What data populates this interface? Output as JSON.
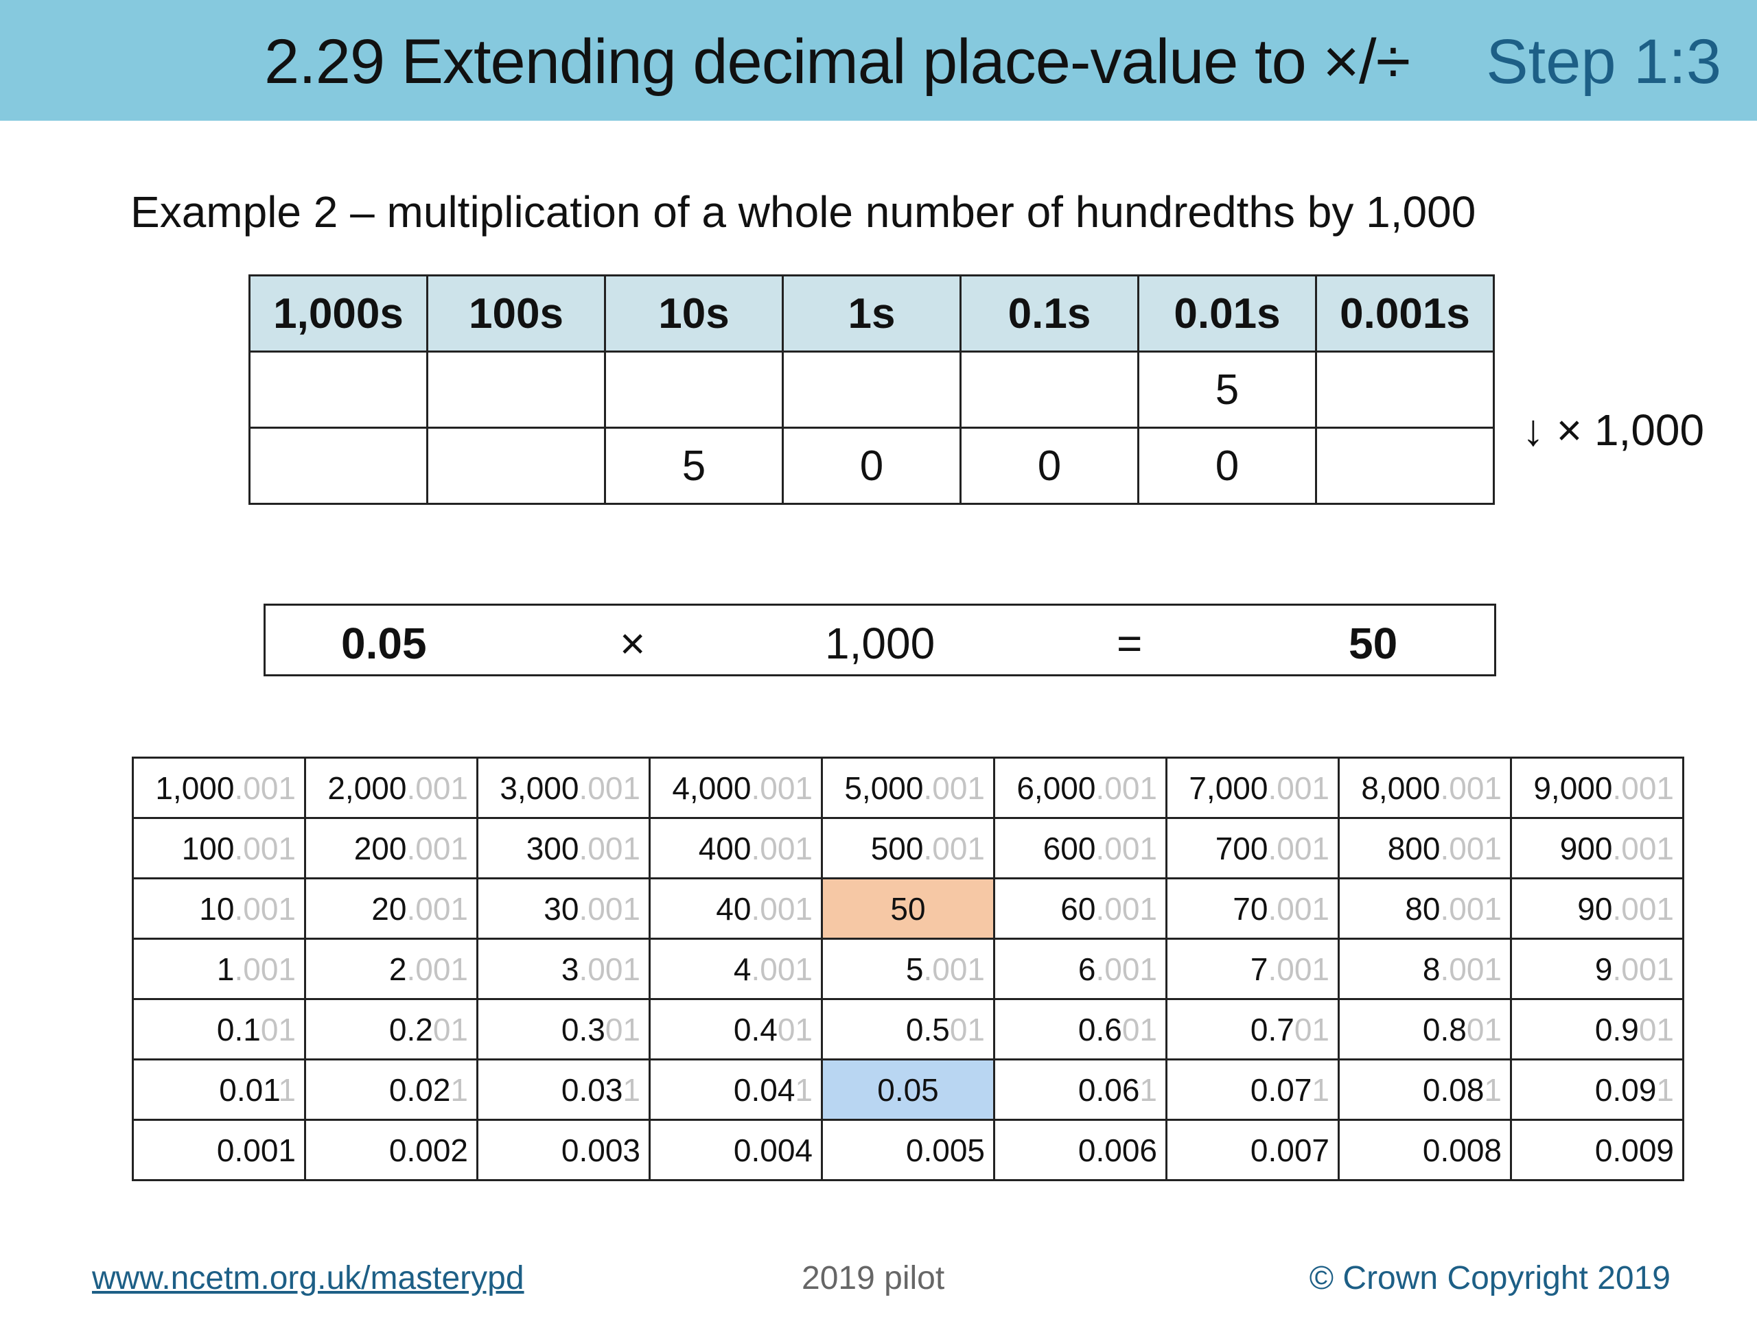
{
  "header": {
    "title": "2.29 Extending decimal place-value to ×/÷",
    "step": "Step 1:3"
  },
  "subtitle": "Example 2 – multiplication of a whole number of hundredths by 1,000",
  "place_value_table": {
    "headers": [
      "1,000s",
      "100s",
      "10s",
      "1s",
      "0.1s",
      "0.01s",
      "0.001s"
    ],
    "rows": [
      [
        "",
        "",
        "",
        "",
        "",
        "5",
        ""
      ],
      [
        "",
        "",
        "5",
        "0",
        "0",
        "0",
        ""
      ]
    ],
    "note": "↓ × 1,000"
  },
  "equation": {
    "left": "0.05",
    "op": "×",
    "right": "1,000",
    "eq": "=",
    "result": "50"
  },
  "gattegno": {
    "rows": [
      [
        [
          "1,000",
          ".001"
        ],
        [
          "2,000",
          ".001"
        ],
        [
          "3,000",
          ".001"
        ],
        [
          "4,000",
          ".001"
        ],
        [
          "5,000",
          ".001"
        ],
        [
          "6,000",
          ".001"
        ],
        [
          "7,000",
          ".001"
        ],
        [
          "8,000",
          ".001"
        ],
        [
          "9,000",
          ".001"
        ]
      ],
      [
        [
          "100",
          ".001"
        ],
        [
          "200",
          ".001"
        ],
        [
          "300",
          ".001"
        ],
        [
          "400",
          ".001"
        ],
        [
          "500",
          ".001"
        ],
        [
          "600",
          ".001"
        ],
        [
          "700",
          ".001"
        ],
        [
          "800",
          ".001"
        ],
        [
          "900",
          ".001"
        ]
      ],
      [
        [
          "10",
          ".001"
        ],
        [
          "20",
          ".001"
        ],
        [
          "30",
          ".001"
        ],
        [
          "40",
          ".001"
        ],
        [
          "50",
          ""
        ],
        [
          "60",
          ".001"
        ],
        [
          "70",
          ".001"
        ],
        [
          "80",
          ".001"
        ],
        [
          "90",
          ".001"
        ]
      ],
      [
        [
          "1",
          ".001"
        ],
        [
          "2",
          ".001"
        ],
        [
          "3",
          ".001"
        ],
        [
          "4",
          ".001"
        ],
        [
          "5",
          ".001"
        ],
        [
          "6",
          ".001"
        ],
        [
          "7",
          ".001"
        ],
        [
          "8",
          ".001"
        ],
        [
          "9",
          ".001"
        ]
      ],
      [
        [
          "0.1",
          "01"
        ],
        [
          "0.2",
          "01"
        ],
        [
          "0.3",
          "01"
        ],
        [
          "0.4",
          "01"
        ],
        [
          "0.5",
          "01"
        ],
        [
          "0.6",
          "01"
        ],
        [
          "0.7",
          "01"
        ],
        [
          "0.8",
          "01"
        ],
        [
          "0.9",
          "01"
        ]
      ],
      [
        [
          "0.01",
          "1"
        ],
        [
          "0.02",
          "1"
        ],
        [
          "0.03",
          "1"
        ],
        [
          "0.04",
          "1"
        ],
        [
          "0.05",
          ""
        ],
        [
          "0.06",
          "1"
        ],
        [
          "0.07",
          "1"
        ],
        [
          "0.08",
          "1"
        ],
        [
          "0.09",
          "1"
        ]
      ],
      [
        [
          "0.001",
          ""
        ],
        [
          "0.002",
          ""
        ],
        [
          "0.003",
          ""
        ],
        [
          "0.004",
          ""
        ],
        [
          "0.005",
          ""
        ],
        [
          "0.006",
          ""
        ],
        [
          "0.007",
          ""
        ],
        [
          "0.008",
          ""
        ],
        [
          "0.009",
          ""
        ]
      ]
    ],
    "highlight_orange": "50",
    "highlight_blue": "0.05",
    "colors": {
      "orange": "#f6c8a5",
      "blue": "#b9d6f2",
      "ghost_digits": "#c4c4c4"
    }
  },
  "footer": {
    "link": "www.ncetm.org.uk/masterypd",
    "mid": "2019 pilot",
    "right": "© Crown Copyright 2019"
  }
}
